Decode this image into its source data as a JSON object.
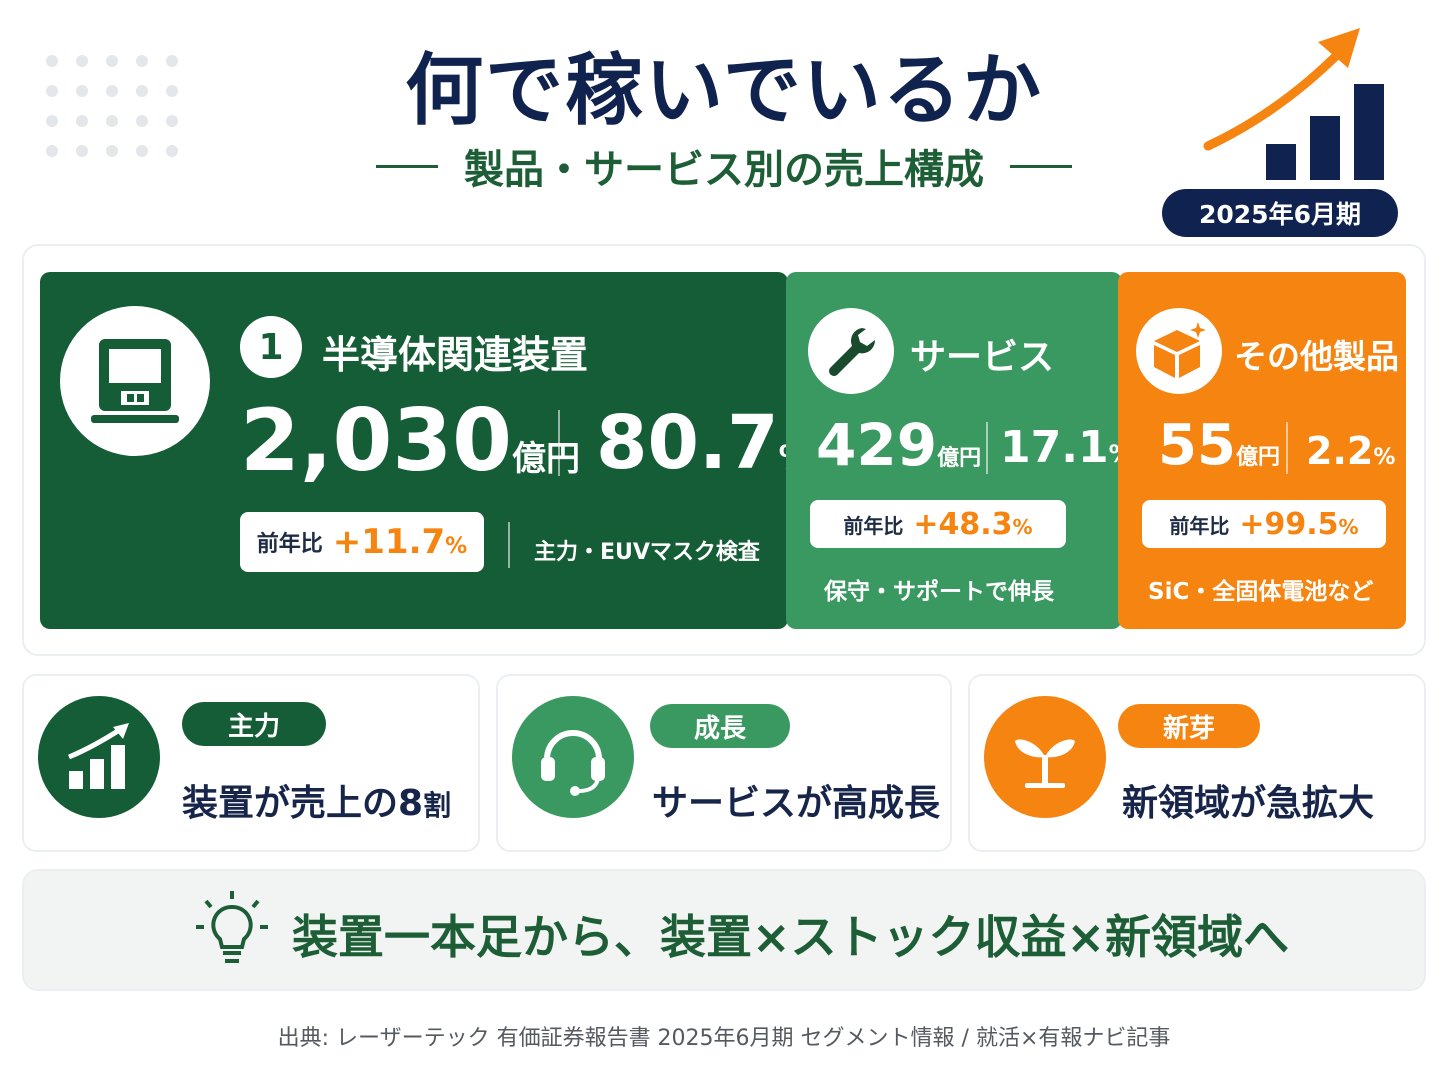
{
  "title": "何で稼いでいるか",
  "subtitle": "製品・サービス別の売上構成",
  "period": "2025年6月期",
  "segments": {
    "main": {
      "rank": "1",
      "name": "半導体関連装置",
      "sales": "2,030",
      "sales_unit": "億円",
      "share": "80.7",
      "share_unit": "%",
      "yoy_label": "前年比",
      "yoy_value": "+11.7",
      "yoy_unit": "%",
      "note": "主力・EUVマスク検査",
      "icon": "inspection-machine-icon"
    },
    "service": {
      "name": "サービス",
      "sales": "429",
      "sales_unit": "億円",
      "share": "17.1",
      "share_unit": "%",
      "yoy_label": "前年比",
      "yoy_value": "+48.3",
      "yoy_unit": "%",
      "note": "保守・サポートで伸長",
      "icon": "wrench-icon"
    },
    "other": {
      "name": "その他製品",
      "sales": "55",
      "sales_unit": "億円",
      "share": "2.2",
      "share_unit": "%",
      "yoy_label": "前年比",
      "yoy_value": "+99.5",
      "yoy_unit": "%",
      "note": "SiC・全固体電池など",
      "icon": "box-icon"
    }
  },
  "cards": [
    {
      "tag": "主力",
      "text_main": "装置が売上の8",
      "text_suffix": "割",
      "icon": "bar-chart-icon"
    },
    {
      "tag": "成長",
      "text": "サービスが高成長",
      "icon": "headset-icon"
    },
    {
      "tag": "新芽",
      "text": "新領域が急拡大",
      "icon": "sprout-icon"
    }
  ],
  "conclusion": "装置一本足から、装置×ストック収益×新領域へ",
  "source": "出典: レーザーテック 有価証券報告書 2025年6月期 セグメント情報 / 就活×有報ナビ記事",
  "colors": {
    "navy": "#0f2250",
    "dark_green": "#155d36",
    "mid_green": "#3a9961",
    "orange": "#f58410"
  }
}
